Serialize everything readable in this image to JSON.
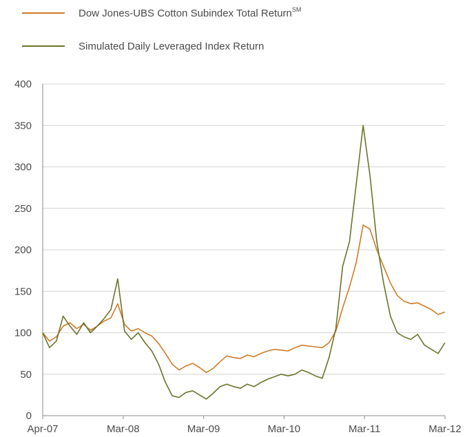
{
  "chart_data": {
    "type": "line",
    "title": "",
    "xlabel": "",
    "ylabel": "",
    "ylim": [
      0,
      400
    ],
    "y_ticks": [
      0,
      50,
      100,
      150,
      200,
      250,
      300,
      350,
      400
    ],
    "x_ticks": [
      "Apr-07",
      "Mar-08",
      "Mar-09",
      "Mar-10",
      "Mar-11",
      "Mar-12"
    ],
    "grid": "horizontal",
    "legend_placement": "top-left",
    "x": [
      "Apr-07",
      "May-07",
      "Jun-07",
      "Jul-07",
      "Aug-07",
      "Sep-07",
      "Oct-07",
      "Nov-07",
      "Dec-07",
      "Jan-08",
      "Feb-08",
      "Mar-08",
      "Apr-08",
      "May-08",
      "Jun-08",
      "Jul-08",
      "Aug-08",
      "Sep-08",
      "Oct-08",
      "Nov-08",
      "Dec-08",
      "Jan-09",
      "Feb-09",
      "Mar-09",
      "Apr-09",
      "May-09",
      "Jun-09",
      "Jul-09",
      "Aug-09",
      "Sep-09",
      "Oct-09",
      "Nov-09",
      "Dec-09",
      "Jan-10",
      "Feb-10",
      "Mar-10",
      "Apr-10",
      "May-10",
      "Jun-10",
      "Jul-10",
      "Aug-10",
      "Sep-10",
      "Oct-10",
      "Nov-10",
      "Dec-10",
      "Jan-11",
      "Feb-11",
      "Mar-11",
      "Apr-11",
      "May-11",
      "Jun-11",
      "Jul-11",
      "Aug-11",
      "Sep-11",
      "Oct-11",
      "Nov-11",
      "Dec-11",
      "Jan-12",
      "Feb-12",
      "Mar-12"
    ],
    "series": [
      {
        "name": "Dow Jones-UBS Cotton Subindex Total Return",
        "name_superscript": "SM",
        "color": "#d07a24",
        "values": [
          100,
          90,
          95,
          108,
          112,
          105,
          110,
          103,
          108,
          114,
          118,
          135,
          110,
          102,
          105,
          100,
          96,
          87,
          75,
          62,
          55,
          60,
          63,
          58,
          52,
          57,
          65,
          72,
          70,
          69,
          73,
          71,
          75,
          78,
          80,
          79,
          78,
          82,
          85,
          84,
          83,
          82,
          88,
          102,
          130,
          155,
          185,
          230,
          225,
          200,
          180,
          160,
          145,
          138,
          135,
          136,
          132,
          128,
          122,
          125
        ]
      },
      {
        "name": "Simulated Daily Leveraged Index Return",
        "color": "#6b7228",
        "values": [
          100,
          82,
          90,
          120,
          108,
          98,
          112,
          100,
          108,
          117,
          128,
          165,
          102,
          92,
          100,
          88,
          78,
          62,
          40,
          24,
          22,
          28,
          30,
          25,
          20,
          27,
          35,
          38,
          35,
          33,
          38,
          35,
          40,
          44,
          47,
          50,
          48,
          50,
          55,
          52,
          48,
          45,
          70,
          105,
          180,
          210,
          280,
          350,
          290,
          210,
          160,
          120,
          100,
          95,
          92,
          98,
          85,
          80,
          75,
          88
        ]
      }
    ]
  }
}
